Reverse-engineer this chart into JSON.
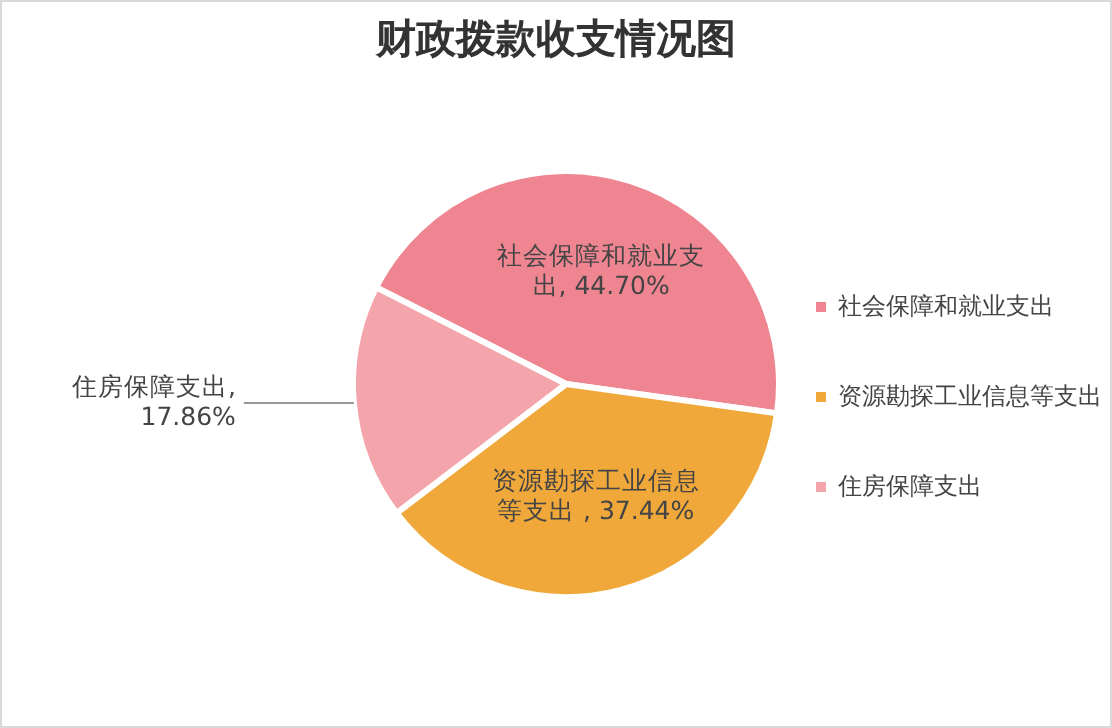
{
  "chart_data": {
    "type": "pie",
    "title": "财政拨款收支情况图",
    "categories": [
      "社会保障和就业支出",
      "资源勘探工业信息等支出",
      "住房保障支出"
    ],
    "values": [
      44.7,
      37.44,
      17.86
    ],
    "colors": [
      "#ef8590",
      "#f0a83a",
      "#f4a5ab"
    ],
    "value_labels": [
      "社会保障和就业支出, 44.70%",
      "资源勘探工业信息等支出 , 37.44%",
      "住房保障支出, 17.86%"
    ],
    "legend": "right"
  }
}
